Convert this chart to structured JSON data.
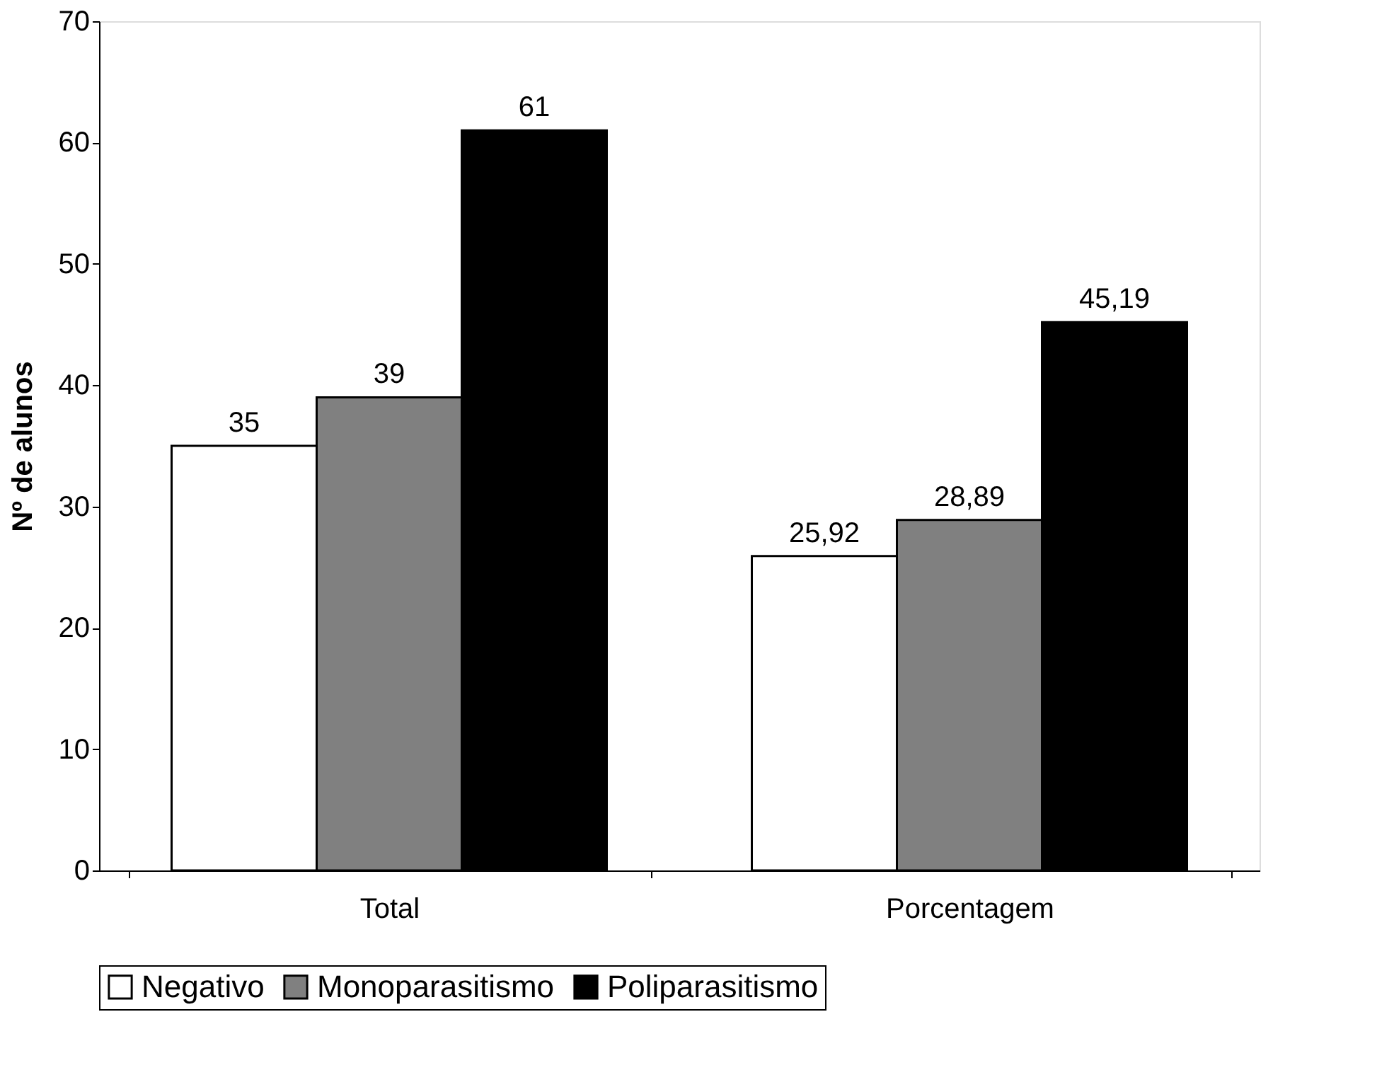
{
  "chart_data": {
    "type": "bar",
    "ylabel": "Nº de alunos",
    "categories": [
      "Total",
      "Porcentagem"
    ],
    "series": [
      {
        "name": "Negativo",
        "color": "#ffffff",
        "values": [
          35,
          25.92
        ],
        "value_labels": [
          "35",
          "25,92"
        ]
      },
      {
        "name": "Monoparasitismo",
        "color": "#808080",
        "values": [
          39,
          28.89
        ],
        "value_labels": [
          "39",
          "28,89"
        ]
      },
      {
        "name": "Poliparasitismo",
        "color": "#000000",
        "values": [
          61,
          45.19
        ],
        "value_labels": [
          "61",
          "45,19"
        ]
      }
    ],
    "ylim": [
      0,
      70
    ],
    "yticks": [
      0,
      10,
      20,
      30,
      40,
      50,
      60,
      70
    ],
    "grid": false,
    "legend": "bottom"
  }
}
